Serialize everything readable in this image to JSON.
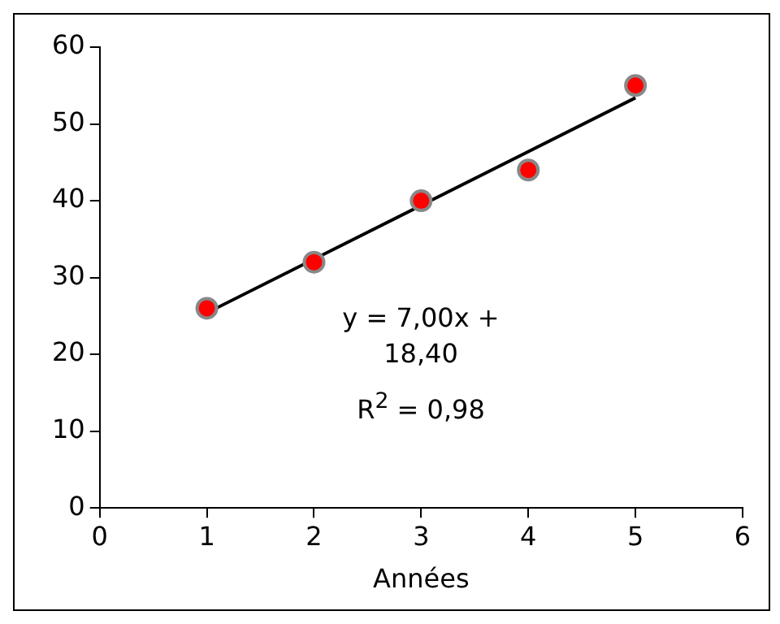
{
  "chart_data": {
    "type": "scatter",
    "xlabel": "Années",
    "xlim": [
      0,
      6
    ],
    "xticks": [
      0,
      1,
      2,
      3,
      4,
      5,
      6
    ],
    "ylim": [
      0,
      60
    ],
    "yticks": [
      0,
      10,
      20,
      30,
      40,
      50,
      60
    ],
    "grid": false,
    "legend": false,
    "marker": "circle",
    "annotations": [
      "y = 7,00x + 18,40",
      "R$^{2}$ = 0,98"
    ],
    "series": [
      {
        "type": "scatter",
        "color": "#ff0000",
        "x": [
          1,
          2,
          3,
          4,
          5
        ],
        "values": [
          26,
          32,
          40,
          44,
          55
        ]
      },
      {
        "type": "line",
        "color": "#000000",
        "marker": "none",
        "line_style": "solid",
        "x": [
          1,
          5
        ],
        "values": [
          25.4,
          53.4
        ]
      }
    ]
  }
}
